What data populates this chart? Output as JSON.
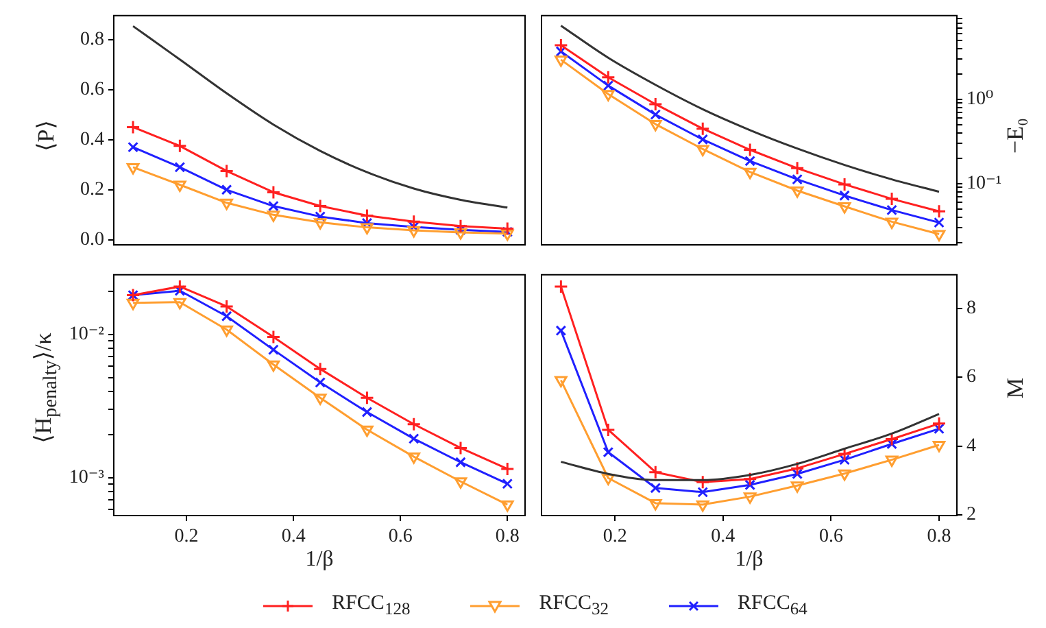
{
  "chart_data": [
    {
      "type": "line",
      "ylabel": "⟨P⟩",
      "x": [
        0.1,
        0.1875,
        0.275,
        0.3625,
        0.45,
        0.5375,
        0.625,
        0.7125,
        0.8
      ],
      "xlim": [
        0.064,
        0.833
      ],
      "ylim": [
        -0.02,
        0.895
      ],
      "yticks": [
        {
          "value": 0,
          "label": "0.0"
        },
        0.2,
        0.4,
        0.6,
        0.8
      ],
      "tick_labels": "y",
      "legend": "bottom",
      "series": [
        {
          "color": "#333333",
          "marker": "none",
          "values": [
            0.853,
            0.72,
            0.585,
            0.46,
            0.355,
            0.27,
            0.205,
            0.16,
            0.129
          ]
        },
        {
          "name": "RFCC$_{128}$",
          "color": "#ff2020",
          "marker": "plus",
          "values": [
            0.45,
            0.375,
            0.275,
            0.19,
            0.135,
            0.097,
            0.073,
            0.055,
            0.045
          ]
        },
        {
          "name": "RFCC$_{32}$",
          "color": "#ff9e30",
          "marker": "triangle",
          "values": [
            0.29,
            0.22,
            0.148,
            0.1,
            0.07,
            0.05,
            0.038,
            0.03,
            0.025
          ]
        },
        {
          "name": "RFCC$_{64}$",
          "color": "#2020ff",
          "marker": "cross",
          "values": [
            0.37,
            0.29,
            0.2,
            0.135,
            0.093,
            0.067,
            0.052,
            0.04,
            0.032
          ]
        }
      ]
    },
    {
      "type": "line",
      "y2label": "−E₀",
      "log": "y2",
      "x": [
        0.1,
        0.1875,
        0.275,
        0.3625,
        0.45,
        0.5375,
        0.625,
        0.7125,
        0.8
      ],
      "xlim": [
        0.064,
        0.833
      ],
      "y2lim": [
        0.0187,
        9.8
      ],
      "y2ticks": [
        {
          "value": 0.02,
          "label": null
        },
        {
          "value": 0.03,
          "label": null
        },
        {
          "value": 0.04,
          "label": null
        },
        {
          "value": 0.05,
          "label": null
        },
        {
          "value": 0.06,
          "label": null
        },
        {
          "value": 0.07,
          "label": null
        },
        {
          "value": 0.08,
          "label": null
        },
        {
          "value": 0.09,
          "label": null
        },
        {
          "value": 0.1,
          "label": "10⁻¹"
        },
        {
          "value": 0.2,
          "label": null
        },
        {
          "value": 0.3,
          "label": null
        },
        {
          "value": 0.4,
          "label": null
        },
        {
          "value": 0.5,
          "label": null
        },
        {
          "value": 0.6,
          "label": null
        },
        {
          "value": 0.7,
          "label": null
        },
        {
          "value": 0.8,
          "label": null
        },
        {
          "value": 0.9,
          "label": null
        },
        {
          "value": 1,
          "label": "10⁰"
        },
        {
          "value": 2,
          "label": null
        },
        {
          "value": 3,
          "label": null
        },
        {
          "value": 4,
          "label": null
        },
        {
          "value": 5,
          "label": null
        },
        {
          "value": 6,
          "label": null
        },
        {
          "value": 7,
          "label": null
        },
        {
          "value": 8,
          "label": null
        },
        {
          "value": 9,
          "label": null
        }
      ],
      "tick_labels": "y",
      "legend": "bottom",
      "series": [
        {
          "color": "#333333",
          "marker": "none",
          "axis": "y2",
          "values": [
            7.45,
            3.1,
            1.48,
            0.76,
            0.43,
            0.26,
            0.166,
            0.112,
            0.0797
          ]
        },
        {
          "name": "RFCC$_{128}$",
          "color": "#ff2020",
          "marker": "plus",
          "axis": "y2",
          "values": [
            4.37,
            1.82,
            0.873,
            0.447,
            0.251,
            0.152,
            0.0977,
            0.0657,
            0.0468
          ]
        },
        {
          "name": "RFCC$_{32}$",
          "color": "#ff9e30",
          "marker": "triangle",
          "axis": "y2",
          "values": [
            2.94,
            1.15,
            0.506,
            0.256,
            0.137,
            0.0824,
            0.0536,
            0.0352,
            0.0251
          ]
        },
        {
          "name": "RFCC$_{64}$",
          "color": "#2020ff",
          "marker": "cross",
          "axis": "y2",
          "values": [
            3.69,
            1.45,
            0.657,
            0.333,
            0.185,
            0.112,
            0.072,
            0.0484,
            0.0344
          ]
        }
      ]
    },
    {
      "type": "line",
      "xlabel": "1/β",
      "ylabel": "⟨H$_{penalty}$⟩/κ",
      "log": "y",
      "x": [
        0.1,
        0.1875,
        0.275,
        0.3625,
        0.45,
        0.5375,
        0.625,
        0.7125,
        0.8
      ],
      "xlim": [
        0.064,
        0.833
      ],
      "xticks": [
        0.2,
        0.4,
        0.6,
        0.8
      ],
      "ylim": [
        0.000543,
        0.0261
      ],
      "yticks": [
        {
          "value": 0.0006,
          "label": null
        },
        {
          "value": 0.0007,
          "label": null
        },
        {
          "value": 0.0008,
          "label": null
        },
        {
          "value": 0.0009,
          "label": null
        },
        {
          "value": 0.001,
          "label": "10⁻³"
        },
        {
          "value": 0.002,
          "label": null
        },
        {
          "value": 0.003,
          "label": null
        },
        {
          "value": 0.004,
          "label": null
        },
        {
          "value": 0.005,
          "label": null
        },
        {
          "value": 0.006,
          "label": null
        },
        {
          "value": 0.007,
          "label": null
        },
        {
          "value": 0.008,
          "label": null
        },
        {
          "value": 0.009,
          "label": null
        },
        {
          "value": 0.01,
          "label": "10⁻²"
        },
        {
          "value": 0.02,
          "label": null
        }
      ],
      "legend": "bottom",
      "series": [
        {
          "name": "RFCC$_{128}$",
          "color": "#ff2020",
          "marker": "plus",
          "values": [
            0.0188,
            0.0216,
            0.0157,
            0.00959,
            0.00574,
            0.00361,
            0.00236,
            0.00161,
            0.00115
          ]
        },
        {
          "name": "RFCC$_{32}$",
          "color": "#ff9e30",
          "marker": "triangle",
          "values": [
            0.0166,
            0.0168,
            0.0108,
            0.00616,
            0.00361,
            0.00216,
            0.0014,
            0.00094,
            0.000647
          ]
        },
        {
          "name": "RFCC$_{64}$",
          "color": "#2020ff",
          "marker": "cross",
          "values": [
            0.0188,
            0.0202,
            0.0134,
            0.00782,
            0.00462,
            0.00287,
            0.00187,
            0.00128,
            0.000906
          ]
        }
      ]
    },
    {
      "type": "line",
      "xlabel": "1/β",
      "y2label": "M",
      "x": [
        0.1,
        0.1875,
        0.275,
        0.3625,
        0.45,
        0.5375,
        0.625,
        0.7125,
        0.8
      ],
      "xlim": [
        0.064,
        0.833
      ],
      "xticks": [
        0.2,
        0.4,
        0.6,
        0.8
      ],
      "y2lim": [
        1.98,
        8.97
      ],
      "y2ticks": [
        2,
        4,
        6,
        8
      ],
      "legend": "bottom",
      "series": [
        {
          "color": "#333333",
          "marker": "none",
          "axis": "y2",
          "values": [
            3.54,
            3.19,
            3.01,
            3.01,
            3.16,
            3.48,
            3.92,
            4.36,
            4.93
          ]
        },
        {
          "name": "RFCC$_{128}$",
          "color": "#ff2020",
          "marker": "plus",
          "axis": "y2",
          "values": [
            8.63,
            4.47,
            3.24,
            2.95,
            3.04,
            3.35,
            3.77,
            4.2,
            4.65
          ]
        },
        {
          "name": "RFCC$_{32}$",
          "color": "#ff9e30",
          "marker": "triangle",
          "axis": "y2",
          "values": [
            5.91,
            3.07,
            2.34,
            2.3,
            2.53,
            2.85,
            3.2,
            3.6,
            4.03
          ]
        },
        {
          "name": "RFCC$_{64}$",
          "color": "#2020ff",
          "marker": "cross",
          "axis": "y2",
          "values": [
            7.35,
            3.82,
            2.78,
            2.66,
            2.87,
            3.19,
            3.6,
            4.06,
            4.5
          ]
        }
      ]
    }
  ]
}
